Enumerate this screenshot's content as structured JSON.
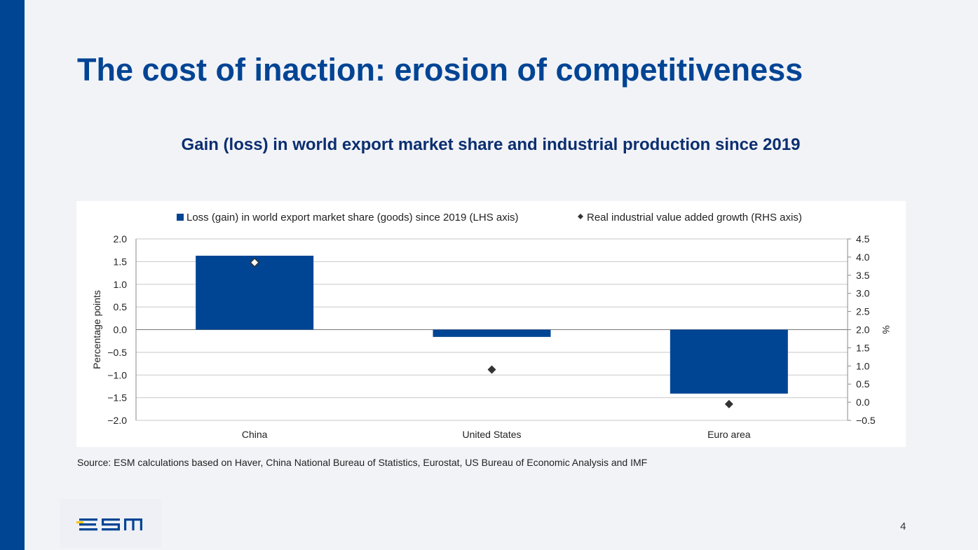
{
  "slide": {
    "title": "The cost of inaction: erosion of competitiveness",
    "source": "Source: ESM calculations based on Haver, China National Bureau of Statistics, Eurostat, US Bureau of Economic Analysis and IMF",
    "page_number": "4"
  },
  "colors": {
    "brand": "#004494",
    "accent": "#f5c400",
    "background": "#f2f3f7",
    "marker": "#333333"
  },
  "logo": {
    "icon": "esm-logo-icon",
    "text": "esm"
  },
  "chart_data": {
    "type": "bar",
    "title": "Gain (loss) in world export market share and industrial production since 2019",
    "categories": [
      "China",
      "United States",
      "Euro area"
    ],
    "series": [
      {
        "name": "Loss (gain) in world export market share (goods) since 2019 (LHS axis)",
        "type": "bar",
        "axis": "left",
        "color": "#004494",
        "values": [
          1.63,
          -0.16,
          -1.41
        ]
      },
      {
        "name": "Real industrial value added growth (RHS axis)",
        "type": "scatter",
        "axis": "right",
        "marker": "diamond",
        "color": "#333333",
        "values": [
          3.85,
          0.9,
          -0.05
        ]
      }
    ],
    "ylabel": "Percentage points",
    "y2label": "%",
    "ylim": [
      -2.0,
      2.0
    ],
    "y2lim": [
      -0.5,
      4.5
    ],
    "yticks": [
      "2.0",
      "1.5",
      "1.0",
      "0.5",
      "0.0",
      "−0.5",
      "−1.0",
      "−1.5",
      "−2.0"
    ],
    "y2ticks": [
      "4.5",
      "4.0",
      "3.5",
      "3.0",
      "2.5",
      "2.0",
      "1.5",
      "1.0",
      "0.5",
      "0.0",
      "−0.5"
    ],
    "grid": true,
    "legend": "top"
  }
}
